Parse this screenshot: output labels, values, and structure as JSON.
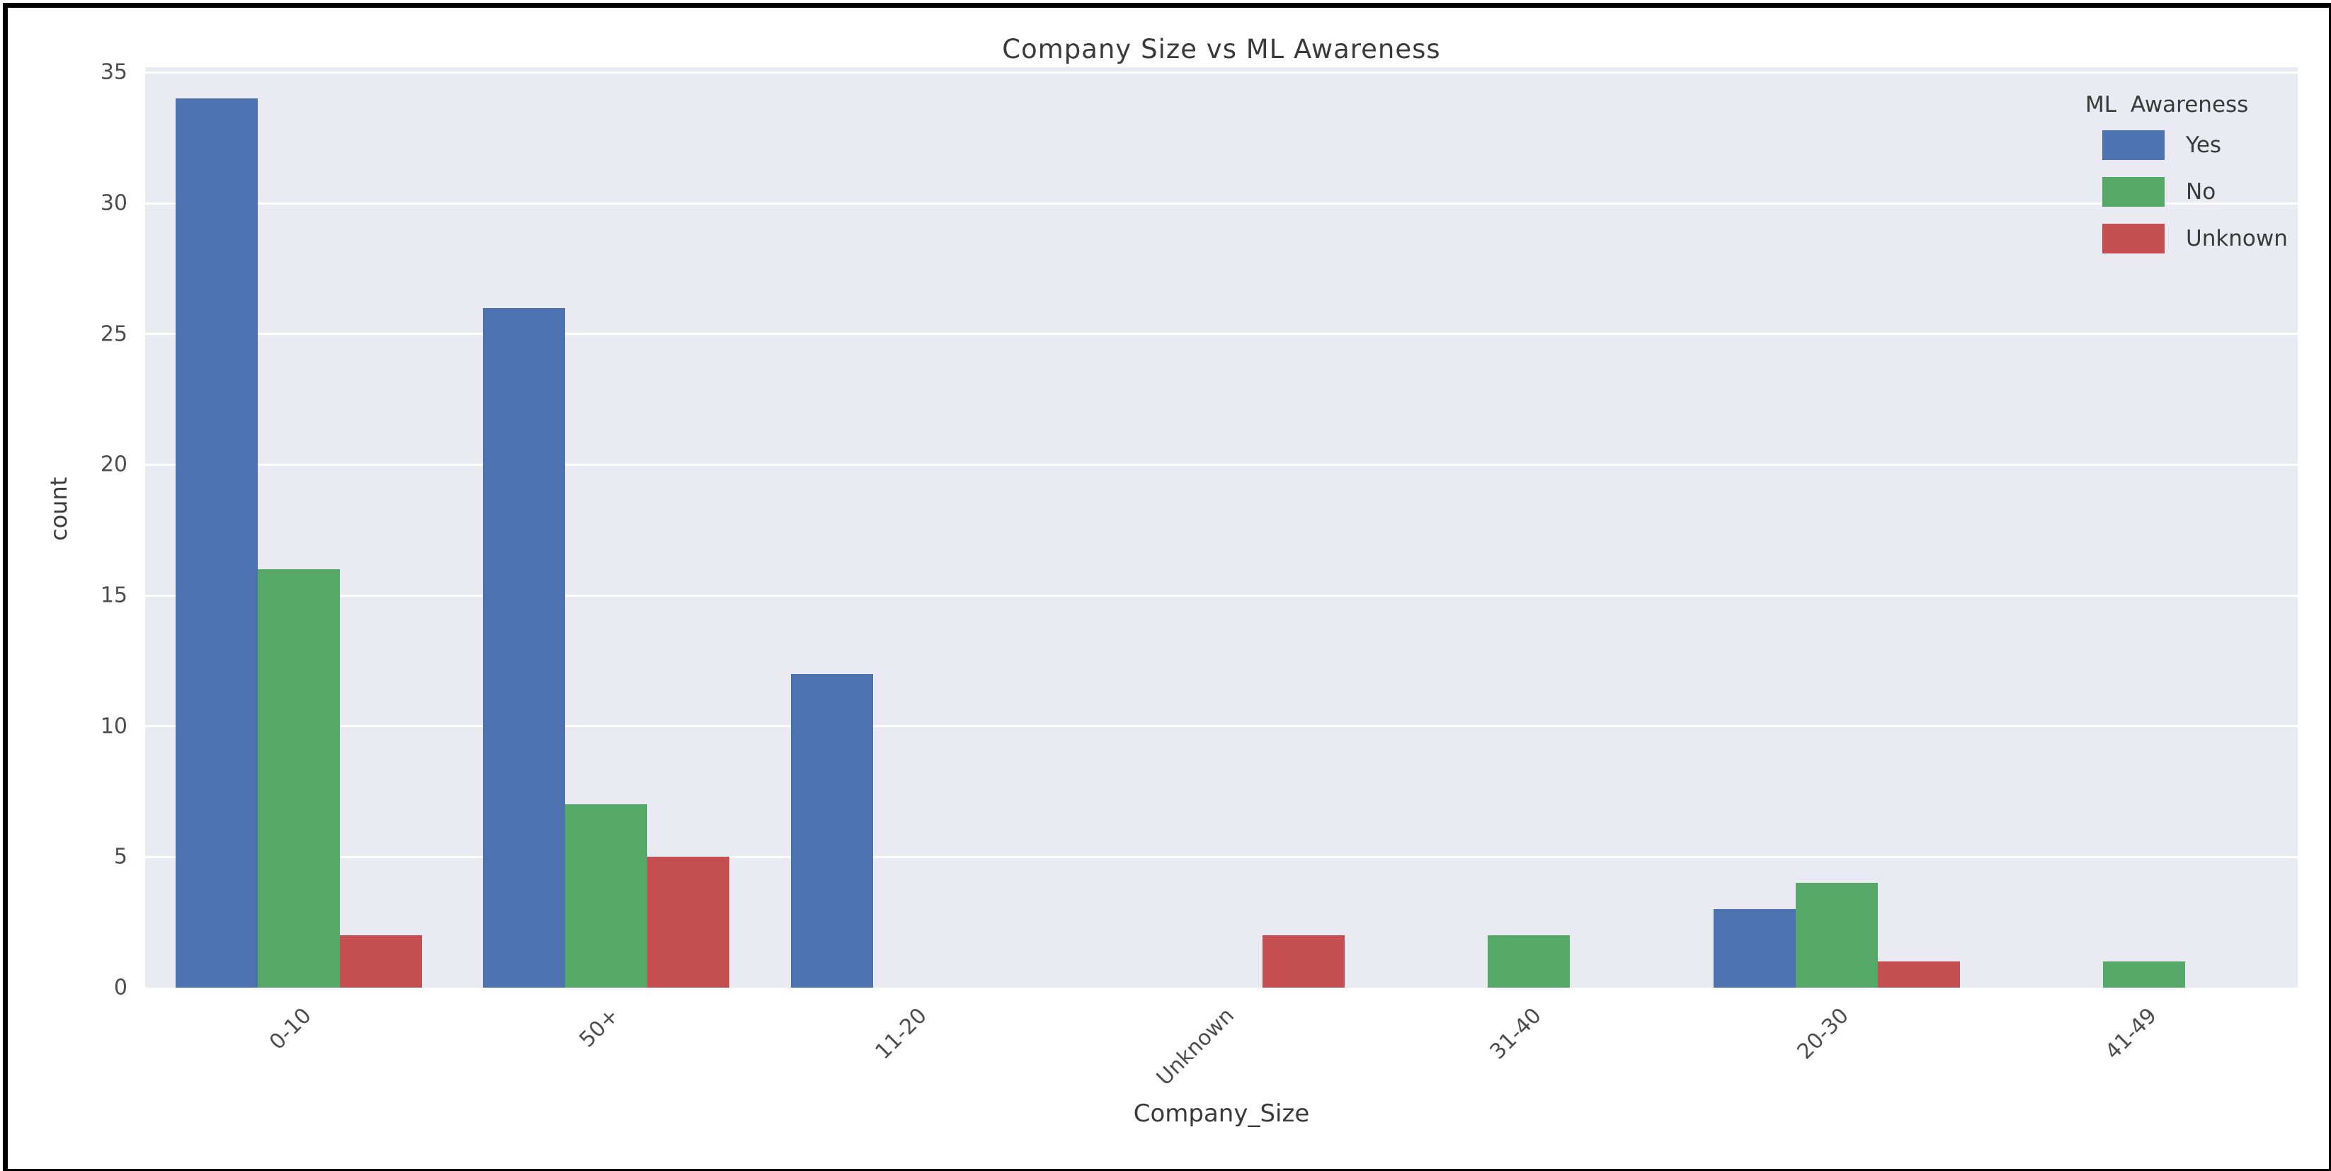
{
  "figure": {
    "title": "Company Size vs ML Awareness",
    "xlabel": "Company_Size",
    "ylabel": "count"
  },
  "legend": {
    "title": "ML Awareness",
    "entries": [
      "Yes",
      "No",
      "Unknown"
    ]
  },
  "colors": {
    "series_yes": "#4C72B0",
    "series_no": "#55A868",
    "series_unknown": "#C44E52",
    "plot_background": "#EAEAF2",
    "gridline": "#FFFFFF",
    "text": "#3a3a3a",
    "frame_border": "#000000"
  },
  "chart_data": {
    "type": "bar",
    "title": "Company Size vs ML Awareness",
    "xlabel": "Company_Size",
    "ylabel": "count",
    "categories": [
      "0-10",
      "50+",
      "11-20",
      "Unknown",
      "31-40",
      "20-30",
      "41-49"
    ],
    "series": [
      {
        "name": "Yes",
        "color": "#4C72B0",
        "values": [
          34,
          26,
          12,
          0,
          0,
          3,
          0
        ]
      },
      {
        "name": "No",
        "color": "#55A868",
        "values": [
          16,
          7,
          0,
          0,
          2,
          4,
          1
        ]
      },
      {
        "name": "Unknown",
        "color": "#C44E52",
        "values": [
          2,
          5,
          0,
          2,
          0,
          1,
          0
        ]
      }
    ],
    "yticks": [
      0,
      5,
      10,
      15,
      20,
      25,
      30,
      35
    ],
    "ylim": [
      0,
      35.2
    ],
    "xtick_rotation_deg": 45,
    "grid": "horizontal",
    "legend_title": "ML Awareness",
    "legend_position": "upper right"
  }
}
